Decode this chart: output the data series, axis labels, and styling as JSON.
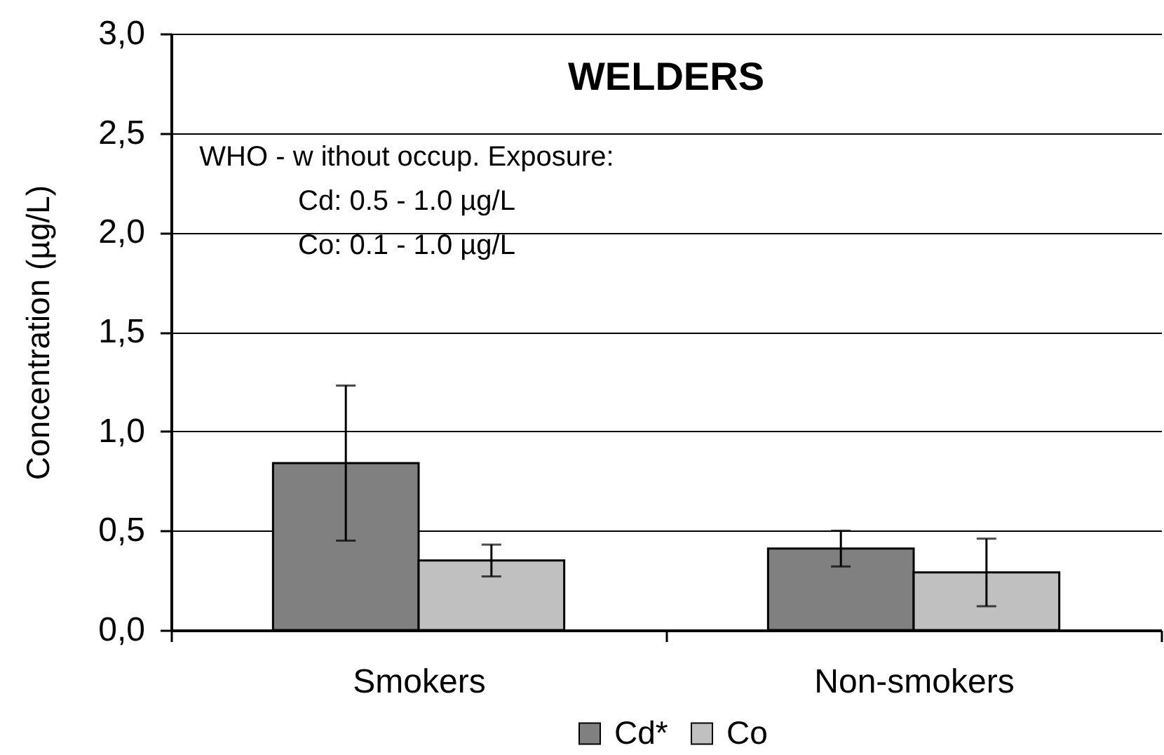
{
  "chart_data": {
    "type": "bar",
    "title": "WELDERS",
    "ylabel": "Concentration (µg/L)",
    "categories": [
      "Smokers",
      "Non-smokers"
    ],
    "series": [
      {
        "name": "Cd*",
        "color": "#808080",
        "values": [
          0.84,
          0.41
        ],
        "errors": [
          0.39,
          0.09
        ]
      },
      {
        "name": "Co",
        "color": "#c0c0c0",
        "values": [
          0.35,
          0.29
        ],
        "errors": [
          0.08,
          0.17
        ]
      }
    ],
    "ylim": [
      0,
      3
    ],
    "yticks": [
      {
        "value": 0,
        "label": "0,0"
      },
      {
        "value": 0.5,
        "label": "0,5"
      },
      {
        "value": 1,
        "label": "1,0"
      },
      {
        "value": 1.5,
        "label": "1,5"
      },
      {
        "value": 2,
        "label": "2,0"
      },
      {
        "value": 2.5,
        "label": "2,5"
      },
      {
        "value": 3,
        "label": "3,0"
      }
    ],
    "grid": "y",
    "legend": "bottom",
    "annotations": [
      "WHO - w ithout occup. Exposure:",
      "Cd: 0.5 - 1.0 µg/L",
      "Co: 0.1 - 1.0 µg/L"
    ]
  }
}
